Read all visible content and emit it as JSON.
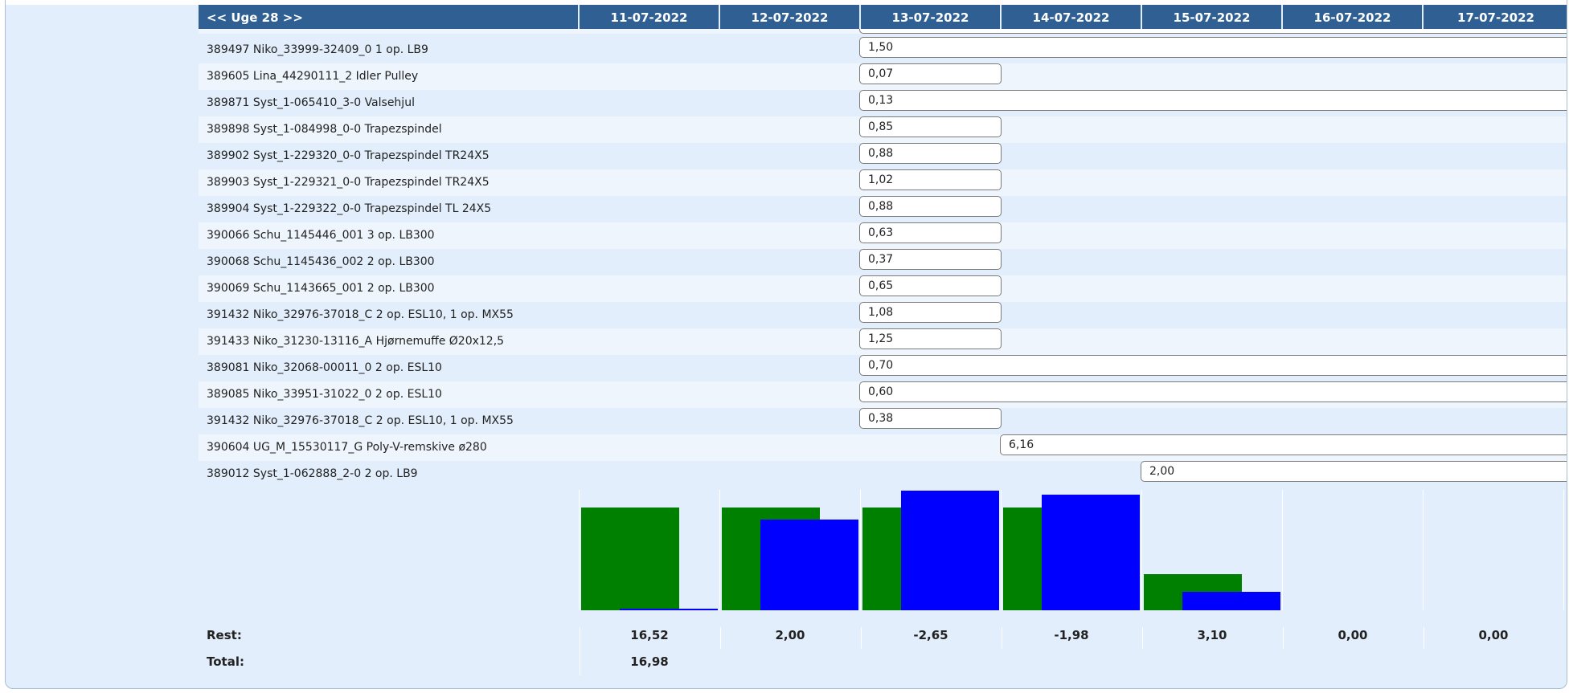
{
  "header": {
    "week_nav": "<< Uge 28 >>",
    "days": [
      "11-07-2022",
      "12-07-2022",
      "13-07-2022",
      "14-07-2022",
      "15-07-2022",
      "16-07-2022",
      "17-07-2022"
    ]
  },
  "rows": [
    {
      "label": "389497 Niko_33999-32409_0 1 op. LB9",
      "value": "1,50"
    },
    {
      "label": "389605 Lina_44290111_2 Idler Pulley",
      "value": "0,07"
    },
    {
      "label": "389871 Syst_1-065410_3-0 Valsehjul",
      "value": "0,13"
    },
    {
      "label": "389898 Syst_1-084998_0-0 Trapezspindel",
      "value": "0,85"
    },
    {
      "label": "389902 Syst_1-229320_0-0 Trapezspindel TR24X5",
      "value": "0,88"
    },
    {
      "label": "389903 Syst_1-229321_0-0 Trapezspindel TR24X5",
      "value": "1,02"
    },
    {
      "label": "389904 Syst_1-229322_0-0 Trapezspindel TL 24X5",
      "value": "0,88"
    },
    {
      "label": "390066 Schu_1145446_001 3 op. LB300",
      "value": "0,63"
    },
    {
      "label": "390068 Schu_1145436_002 2 op. LB300",
      "value": "0,37"
    },
    {
      "label": "390069 Schu_1143665_001 2 op. LB300",
      "value": "0,65"
    },
    {
      "label": "391432 Niko_32976-37018_C 2 op. ESL10, 1 op. MX55",
      "value": "1,08"
    },
    {
      "label": "391433 Niko_31230-13116_A Hjørnemuffe Ø20x12,5",
      "value": "1,25"
    },
    {
      "label": "389081 Niko_32068-00011_0 2 op. ESL10",
      "value": "0,70"
    },
    {
      "label": "389085 Niko_33951-31022_0 2 op. ESL10",
      "value": "0,60"
    },
    {
      "label": "391432 Niko_32976-37018_C 2 op. ESL10, 1 op. MX55",
      "value": "0,38"
    },
    {
      "label": "390604 UG_M_15530117_G Poly-V-remskive ø280",
      "value": "6,16"
    },
    {
      "label": "389012 Syst_1-062888_2-0 2 op. LB9",
      "value": "2,00"
    }
  ],
  "chart_data": {
    "type": "bar",
    "categories": [
      "11-07-2022",
      "12-07-2022",
      "13-07-2022",
      "14-07-2022",
      "15-07-2022",
      "16-07-2022",
      "17-07-2022"
    ],
    "series": [
      {
        "color": "#008000",
        "values": [
          0.85,
          0.85,
          0.85,
          0.85,
          0.3,
          0,
          0
        ]
      },
      {
        "color": "#0000ff",
        "values": [
          0.01,
          0.75,
          0.99,
          0.96,
          0.15,
          0,
          0
        ]
      }
    ],
    "ylim": [
      0,
      1
    ]
  },
  "footer": {
    "rest_label": "Rest:",
    "rest_values": [
      "16,52",
      "2,00",
      "-2,65",
      "-1,98",
      "3,10",
      "0,00",
      "0,00"
    ],
    "total_label": "Total:",
    "total_value": "16,98"
  }
}
